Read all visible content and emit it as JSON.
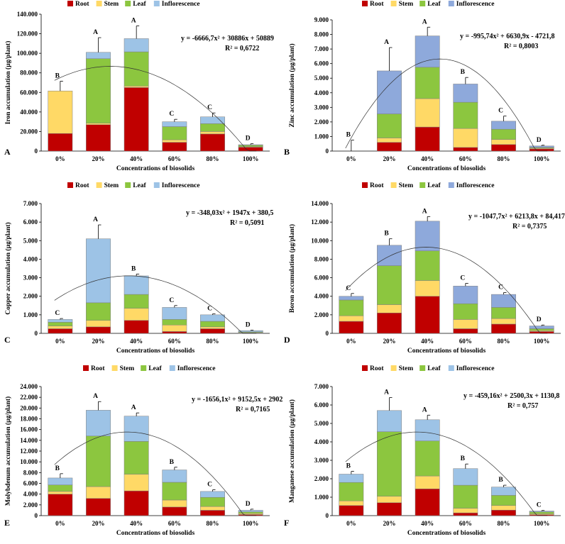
{
  "chart_data": [
    {
      "panel": "A",
      "type": "bar",
      "stacked": true,
      "ylabel": "Iron accumulation (µg/plant)",
      "xlabel": "Concentrations of biosolids",
      "categories": [
        "0%",
        "20%",
        "40%",
        "60%",
        "80%",
        "100%"
      ],
      "ylim": [
        0,
        140000
      ],
      "yticks": [
        "0",
        "20.000",
        "40.000",
        "60.000",
        "80.000",
        "100.000",
        "120.000",
        "140.000"
      ],
      "legend": [
        "Root",
        "Stem",
        "Leaf",
        "Inflorescence"
      ],
      "legend_colors": [
        "#c00000",
        "#ffd966",
        "#8cc63f",
        "#9dc3e6"
      ],
      "series": [
        {
          "name": "Root",
          "values": [
            18000,
            27000,
            65000,
            9000,
            17500,
            4000
          ]
        },
        {
          "name": "Stem",
          "values": [
            43500,
            1500,
            1500,
            2500,
            2500,
            500
          ]
        },
        {
          "name": "Leaf",
          "values": [
            0,
            66000,
            35000,
            13500,
            8000,
            1500
          ]
        },
        {
          "name": "Inflorescence",
          "values": [
            0,
            6500,
            13500,
            5000,
            7000,
            500
          ]
        }
      ],
      "error": [
        10000,
        15000,
        13000,
        2500,
        4000,
        1000
      ],
      "letters": [
        "B",
        "A",
        "A",
        "C",
        "C",
        "D"
      ],
      "equation": "y = -6666,7x² + 30886x + 50889",
      "r2": "R² = 0,6722",
      "trend": {
        "a": -6666.7,
        "b": 30886,
        "c": 50889
      }
    },
    {
      "panel": "B",
      "type": "bar",
      "stacked": true,
      "ylabel": "Zinc accumulation (µg/plant)",
      "xlabel": "Concentrations of biosolids",
      "categories": [
        "0%",
        "20%",
        "40%",
        "60%",
        "80%",
        "100%"
      ],
      "ylim": [
        0,
        9000
      ],
      "yticks": [
        "0",
        "1.000",
        "2.000",
        "3.000",
        "4.000",
        "5.000",
        "6.000",
        "7.000",
        "8.000",
        "9.000"
      ],
      "legend": [
        "Root",
        "Stem",
        "Leaf",
        "Inflorescence"
      ],
      "legend_colors": [
        "#c00000",
        "#ffd966",
        "#8cc63f",
        "#8ea9db"
      ],
      "series": [
        {
          "name": "Root",
          "values": [
            0,
            600,
            1650,
            250,
            450,
            150
          ]
        },
        {
          "name": "Stem",
          "values": [
            0,
            300,
            1950,
            1300,
            350,
            50
          ]
        },
        {
          "name": "Leaf",
          "values": [
            0,
            1650,
            2150,
            1800,
            700,
            50
          ]
        },
        {
          "name": "Inflorescence",
          "values": [
            0,
            2950,
            2150,
            1250,
            550,
            100
          ]
        }
      ],
      "error": [
        750,
        1600,
        600,
        450,
        350,
        50
      ],
      "letters": [
        "B",
        "A",
        "A",
        "B",
        "C",
        "D"
      ],
      "equation": "y = -995,74x² + 6630,9x - 4721,8",
      "r2": "R² = 0,8003",
      "trend": {
        "a": -995.74,
        "b": 6630.9,
        "c": -4721.8
      }
    },
    {
      "panel": "C",
      "type": "bar",
      "stacked": true,
      "ylabel": "Copper accumulation (µg/plant)",
      "xlabel": "Concentrations of biosolids",
      "categories": [
        "0%",
        "20%",
        "40%",
        "60%",
        "80%",
        "100%"
      ],
      "ylim": [
        0,
        7000
      ],
      "yticks": [
        "0",
        "1.000",
        "2.000",
        "3.000",
        "4.000",
        "5.000",
        "6.000",
        "7.000"
      ],
      "legend": [
        "Root",
        "Stem",
        "Leaf",
        "Inflorescence"
      ],
      "legend_colors": [
        "#c00000",
        "#ffd966",
        "#8cc63f",
        "#9dc3e6"
      ],
      "series": [
        {
          "name": "Root",
          "values": [
            250,
            350,
            700,
            100,
            250,
            20
          ]
        },
        {
          "name": "Stem",
          "values": [
            150,
            350,
            650,
            350,
            100,
            20
          ]
        },
        {
          "name": "Leaf",
          "values": [
            200,
            950,
            750,
            300,
            300,
            40
          ]
        },
        {
          "name": "Inflorescence",
          "values": [
            150,
            3450,
            1000,
            650,
            350,
            70
          ]
        }
      ],
      "error": [
        50,
        750,
        100,
        100,
        50,
        20
      ],
      "letters": [
        "C",
        "A",
        "B",
        "C",
        "C",
        "D"
      ],
      "equation": "y = -348,03x² + 1947x + 380,5",
      "r2": "R² = 0,5091",
      "trend": {
        "a": -348.03,
        "b": 1947,
        "c": 380.5
      }
    },
    {
      "panel": "D",
      "type": "bar",
      "stacked": true,
      "ylabel": "Boron accumulation (µg/plant)",
      "xlabel": "Concentrations of biosolids",
      "categories": [
        "0%",
        "20%",
        "40%",
        "60%",
        "80%",
        "100%"
      ],
      "ylim": [
        0,
        14000
      ],
      "yticks": [
        "0",
        "2.000",
        "4.000",
        "6.000",
        "8.000",
        "10.000",
        "12.000",
        "14.000"
      ],
      "legend": [
        "Root",
        "Stem",
        "Leaf",
        "Inflorescence"
      ],
      "legend_colors": [
        "#c00000",
        "#ffd966",
        "#8cc63f",
        "#8ea9db"
      ],
      "series": [
        {
          "name": "Root",
          "values": [
            1300,
            2200,
            4000,
            500,
            1000,
            200
          ]
        },
        {
          "name": "Stem",
          "values": [
            600,
            900,
            1700,
            1000,
            600,
            100
          ]
        },
        {
          "name": "Leaf",
          "values": [
            1700,
            4200,
            3200,
            1700,
            1200,
            200
          ]
        },
        {
          "name": "Inflorescence",
          "values": [
            400,
            2200,
            3200,
            1900,
            1400,
            300
          ]
        }
      ],
      "error": [
        300,
        700,
        500,
        300,
        200,
        100
      ],
      "letters": [
        "C",
        "B",
        "A",
        "C",
        "C",
        "D"
      ],
      "equation": "y = -1047,7x² + 6213,8x + 84,417",
      "r2": "R² = 0,7375",
      "trend": {
        "a": -1047.7,
        "b": 6213.8,
        "c": 84.417
      }
    },
    {
      "panel": "E",
      "type": "bar",
      "stacked": true,
      "ylabel": "Molybdenum accumulation (µg/plant)",
      "xlabel": "Concentrations of biosolids",
      "categories": [
        "0%",
        "20%",
        "40%",
        "60%",
        "80%",
        "100%"
      ],
      "ylim": [
        0,
        24000
      ],
      "yticks": [
        "0",
        "2.000",
        "4.000",
        "6.000",
        "8.000",
        "10.000",
        "12.000",
        "14.000",
        "16.000",
        "18.000",
        "20.000",
        "22.000",
        "24.000"
      ],
      "legend": [
        "Root",
        "Stem",
        "Leaf",
        "Inflorescence"
      ],
      "legend_colors": [
        "#c00000",
        "#ffd966",
        "#8cc63f",
        "#9dc3e6"
      ],
      "series": [
        {
          "name": "Root",
          "values": [
            4000,
            3200,
            4600,
            1600,
            1000,
            200
          ]
        },
        {
          "name": "Stem",
          "values": [
            500,
            2200,
            3100,
            1300,
            700,
            200
          ]
        },
        {
          "name": "Leaf",
          "values": [
            1200,
            9400,
            6100,
            3300,
            1700,
            300
          ]
        },
        {
          "name": "Inflorescence",
          "values": [
            1300,
            4800,
            4700,
            2300,
            1100,
            300
          ]
        }
      ],
      "error": [
        800,
        1600,
        600,
        500,
        300,
        200
      ],
      "letters": [
        "B",
        "A",
        "A",
        "B",
        "C",
        "D"
      ],
      "equation": "y = -1656,1x² + 9152,5x + 2902",
      "r2": "R² = 0,7165",
      "trend": {
        "a": -1656.1,
        "b": 9152.5,
        "c": 2902
      }
    },
    {
      "panel": "F",
      "type": "bar",
      "stacked": true,
      "ylabel": "Manganese accumulation (µg/plant)",
      "xlabel": "Concentrations of biosolids",
      "categories": [
        "0%",
        "20%",
        "40%",
        "60%",
        "80%",
        "100%"
      ],
      "ylim": [
        0,
        7000
      ],
      "yticks": [
        "0",
        "1.000",
        "2.000",
        "3.000",
        "4.000",
        "5.000",
        "6.000",
        "7.000"
      ],
      "legend": [
        "Root",
        "Stem",
        "Leaf",
        "Inflorescence"
      ],
      "legend_colors": [
        "#c00000",
        "#ffd966",
        "#8cc63f",
        "#9dc3e6"
      ],
      "series": [
        {
          "name": "Root",
          "values": [
            550,
            700,
            1450,
            150,
            300,
            50
          ]
        },
        {
          "name": "Stem",
          "values": [
            250,
            350,
            700,
            250,
            250,
            50
          ]
        },
        {
          "name": "Leaf",
          "values": [
            1000,
            3500,
            1900,
            1250,
            550,
            100
          ]
        },
        {
          "name": "Inflorescence",
          "values": [
            450,
            1150,
            1150,
            900,
            450,
            50
          ]
        }
      ],
      "error": [
        150,
        700,
        250,
        250,
        100,
        30
      ],
      "letters": [
        "B",
        "A",
        "A",
        "B",
        "B",
        "C"
      ],
      "equation": "y = -459,16x² + 2500,3x + 1130,8",
      "r2": "R² = 0,757",
      "trend": {
        "a": -459.16,
        "b": 2500.3,
        "c": 1130.8
      }
    }
  ]
}
